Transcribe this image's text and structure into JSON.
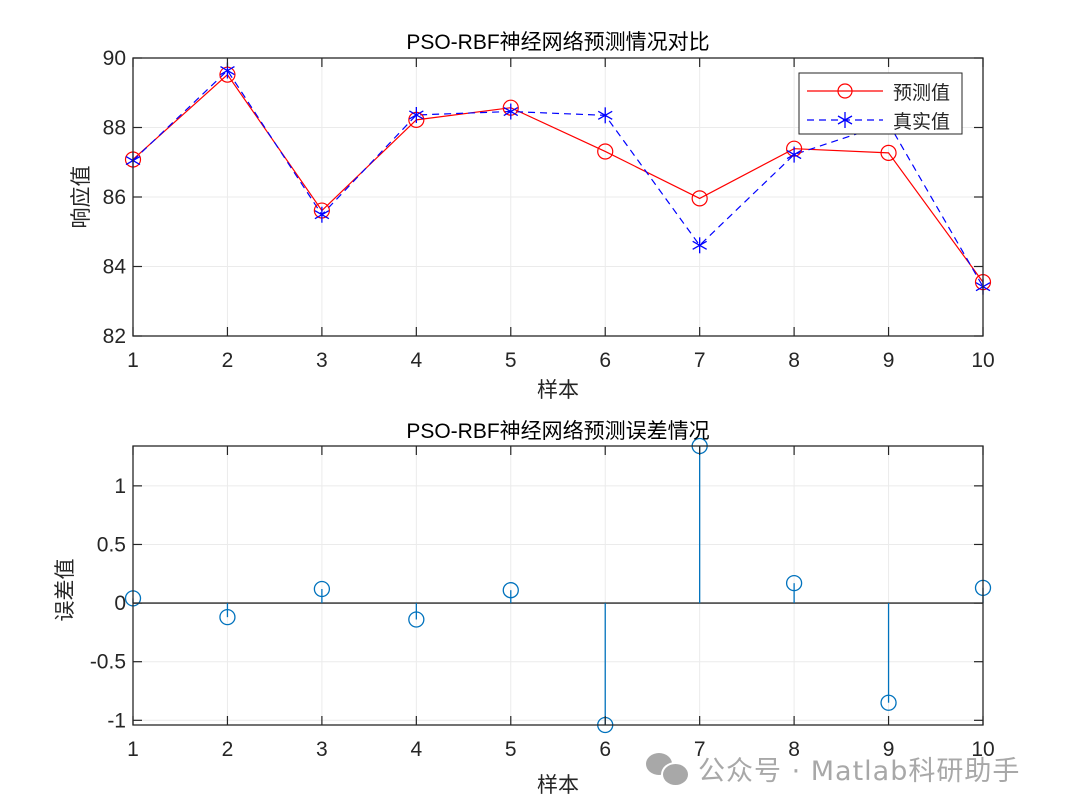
{
  "chart_data": [
    {
      "type": "line",
      "title": "PSO-RBF神经网络预测情况对比",
      "xlabel": "样本",
      "ylabel": "响应值",
      "x": [
        1,
        2,
        3,
        4,
        5,
        6,
        7,
        8,
        9,
        10
      ],
      "xlim": [
        1,
        10
      ],
      "ylim": [
        82,
        90
      ],
      "xticks": [
        "1",
        "2",
        "3",
        "4",
        "5",
        "6",
        "7",
        "8",
        "9",
        "10"
      ],
      "yticks": [
        "82",
        "84",
        "86",
        "88",
        "90"
      ],
      "grid": true,
      "legend_position": "northeast",
      "series": [
        {
          "name": "预测值",
          "color": "#ff0000",
          "line": "solid",
          "marker": "circle",
          "values": [
            87.08,
            89.52,
            85.61,
            88.22,
            88.57,
            87.31,
            85.96,
            87.39,
            87.27,
            83.55
          ]
        },
        {
          "name": "真实值",
          "color": "#0000ff",
          "line": "dashed",
          "marker": "asterisk",
          "values": [
            87.05,
            89.64,
            85.49,
            88.36,
            88.46,
            88.35,
            84.61,
            87.22,
            88.12,
            83.42
          ]
        }
      ]
    },
    {
      "type": "stem",
      "title": "PSO-RBF神经网络预测误差情况",
      "xlabel": "样本",
      "ylabel": "误差值",
      "x": [
        1,
        2,
        3,
        4,
        5,
        6,
        7,
        8,
        9,
        10
      ],
      "xlim": [
        1,
        10
      ],
      "ylim": [
        -1.04,
        1.34
      ],
      "xticks": [
        "1",
        "2",
        "3",
        "4",
        "5",
        "6",
        "7",
        "8",
        "9",
        "10"
      ],
      "yticks": [
        "-1",
        "-0.5",
        "0",
        "0.5",
        "1"
      ],
      "ytick_values": [
        -1,
        -0.5,
        0,
        0.5,
        1
      ],
      "grid": true,
      "series": [
        {
          "name": "误差",
          "color": "#0072bd",
          "marker": "circle",
          "values": [
            0.04,
            -0.12,
            0.12,
            -0.14,
            0.11,
            -1.04,
            1.34,
            0.17,
            -0.85,
            0.13
          ]
        }
      ]
    }
  ],
  "watermark": {
    "text": "公众号 · Matlab科研助手",
    "icon": "wechat-icon"
  }
}
